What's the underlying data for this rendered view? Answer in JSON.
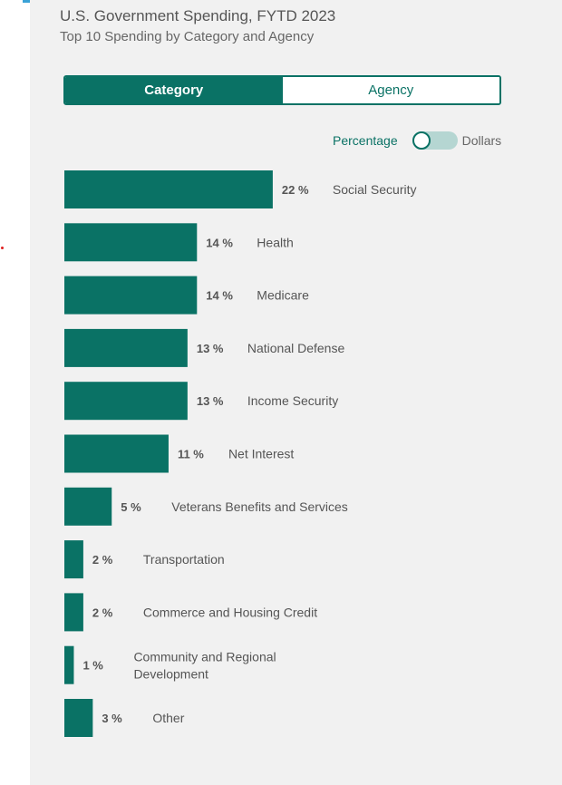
{
  "header": {
    "title": "U.S. Government Spending, FYTD 2023",
    "subtitle": "Top 10 Spending by Category and Agency"
  },
  "tabs": [
    {
      "label": "Category",
      "active": true
    },
    {
      "label": "Agency",
      "active": false
    }
  ],
  "toggle": {
    "left_label": "Percentage",
    "right_label": "Dollars",
    "selected": "Percentage"
  },
  "colors": {
    "accent": "#0a7265",
    "bar": "#0a7265",
    "panel_bg": "#f1f1f1",
    "stripes": [
      "#3aa2d6",
      "#2c3e6e",
      "#0a7265",
      "#e0633c",
      "#5a2d82"
    ]
  },
  "chart_data": {
    "type": "bar",
    "orientation": "horizontal",
    "unit": "%",
    "categories": [
      "Social Security",
      "Health",
      "Medicare",
      "National Defense",
      "Income Security",
      "Net Interest",
      "Veterans Benefits and Services",
      "Transportation",
      "Commerce and Housing Credit",
      "Community and Regional Development",
      "Other"
    ],
    "category_lines": [
      [
        "Social Security"
      ],
      [
        "Health"
      ],
      [
        "Medicare"
      ],
      [
        "National Defense"
      ],
      [
        "Income Security"
      ],
      [
        "Net Interest"
      ],
      [
        "Veterans Benefits and Services"
      ],
      [
        "Transportation"
      ],
      [
        "Commerce and Housing Credit"
      ],
      [
        "Community and Regional",
        "Development"
      ],
      [
        "Other"
      ]
    ],
    "values": [
      22,
      14,
      14,
      13,
      13,
      11,
      5,
      2,
      2,
      1,
      3
    ],
    "value_labels": [
      "22 %",
      "14 %",
      "14 %",
      "13 %",
      "13 %",
      "11 %",
      "5 %",
      "2 %",
      "2 %",
      "1 %",
      "3 %"
    ],
    "legend": false,
    "grid": false
  }
}
